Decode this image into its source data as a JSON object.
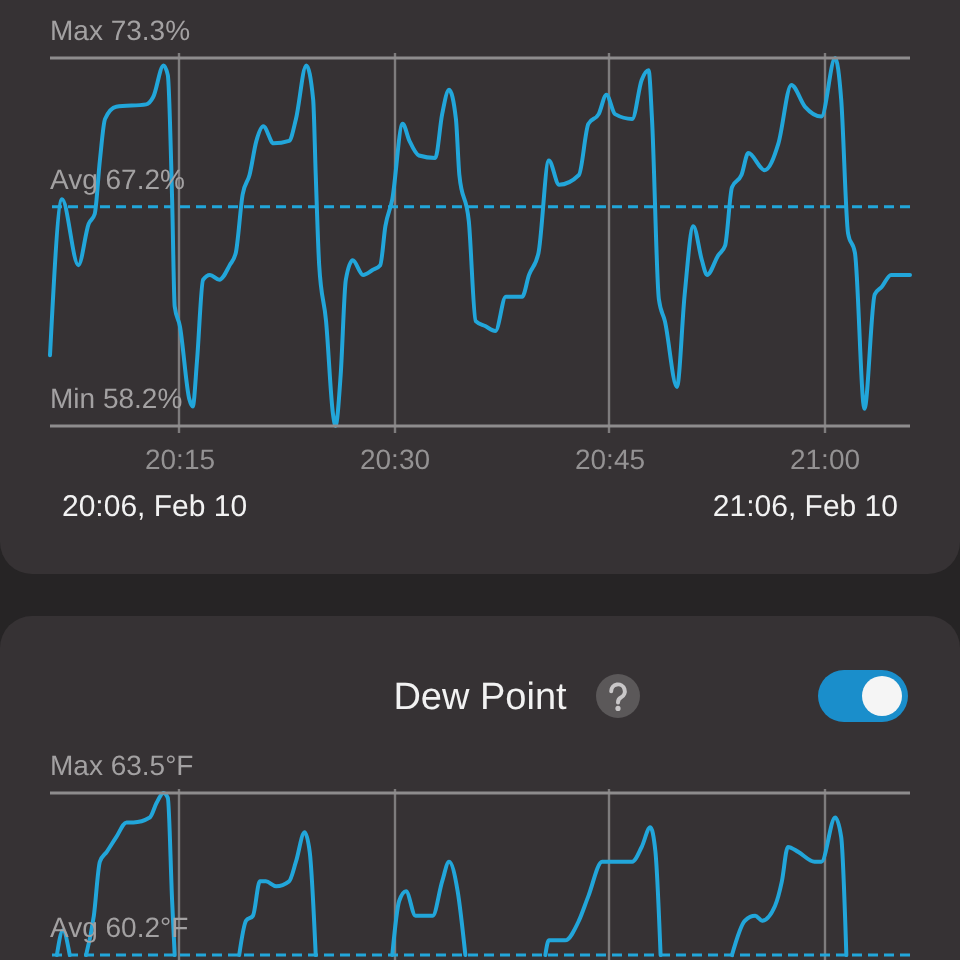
{
  "chart_data": [
    {
      "type": "line",
      "x": [
        20.1,
        20.114,
        20.133,
        20.145,
        20.152,
        20.158,
        20.164,
        20.177,
        20.212,
        20.22,
        20.232,
        20.237,
        20.242,
        20.245,
        20.251,
        20.262,
        20.266,
        20.271,
        20.278,
        20.286,
        20.297,
        20.309,
        20.316,
        20.324,
        20.332,
        20.34,
        20.348,
        20.36,
        20.378,
        20.386,
        20.398,
        20.406,
        20.409,
        20.413,
        20.421,
        20.429,
        20.432,
        20.438,
        20.444,
        20.452,
        20.464,
        20.475,
        20.484,
        20.49,
        20.498,
        20.51,
        20.518,
        20.529,
        20.548,
        20.556,
        20.564,
        20.572,
        20.576,
        20.587,
        20.595,
        20.606,
        20.618,
        20.63,
        20.649,
        20.657,
        20.668,
        20.68,
        20.692,
        20.715,
        20.726,
        20.738,
        20.747,
        20.757,
        20.777,
        20.788,
        20.796,
        20.8,
        20.808,
        20.815,
        20.829,
        20.838,
        20.848,
        20.858,
        20.864,
        20.877,
        20.885,
        20.893,
        20.904,
        20.912,
        20.931,
        20.947,
        20.962,
        20.978,
        20.997,
        21.013,
        21.02,
        21.028,
        21.036,
        21.047,
        21.059,
        21.067,
        21.078,
        21.1
      ],
      "series": [
        {
          "color": "#22a6da",
          "values": [
            61.1,
            67.5,
            64.8,
            66.5,
            66.9,
            69.1,
            70.8,
            71.3,
            71.4,
            71.7,
            73.0,
            72.6,
            67.5,
            63.1,
            62.3,
            59.3,
            59.0,
            60.9,
            64.2,
            64.4,
            64.2,
            64.8,
            65.3,
            67.7,
            68.5,
            69.9,
            70.5,
            69.8,
            69.9,
            70.8,
            73.0,
            71.6,
            68.5,
            64.8,
            62.5,
            58.7,
            58.2,
            60.3,
            64.2,
            65.0,
            64.4,
            64.6,
            64.8,
            66.4,
            67.5,
            70.6,
            69.9,
            69.3,
            69.2,
            71.0,
            72.0,
            70.8,
            68.5,
            66.6,
            62.5,
            62.3,
            62.1,
            63.5,
            63.5,
            64.4,
            65.3,
            69.1,
            68.1,
            68.5,
            70.6,
            71.0,
            71.8,
            71.0,
            70.8,
            72.4,
            72.8,
            70.8,
            63.4,
            62.5,
            59.8,
            63.6,
            66.4,
            65.0,
            64.4,
            65.2,
            65.6,
            68.0,
            68.5,
            69.4,
            68.7,
            69.8,
            72.2,
            71.3,
            70.9,
            73.3,
            71.6,
            66.1,
            65.3,
            58.9,
            63.6,
            63.9,
            64.4,
            64.4
          ]
        }
      ],
      "xlim": [
        20.1,
        21.1
      ],
      "xticks": [
        {
          "value": 20.25,
          "label": "20:15"
        },
        {
          "value": 20.5,
          "label": "20:30"
        },
        {
          "value": 20.75,
          "label": "20:45"
        },
        {
          "value": 21,
          "label": "21:00"
        }
      ],
      "ylim": [
        57.95,
        73.55
      ],
      "tick_labels": "x",
      "grid": "x",
      "ref_lines": [
        {
          "axis": "y",
          "value": 73.3,
          "label": "Max 73.3%",
          "color": "#8e8c8d",
          "line_style": "solid"
        },
        {
          "axis": "y",
          "value": 67.2,
          "label": "Avg 67.2%",
          "color": "#22a6da",
          "line_style": "dashed"
        },
        {
          "axis": "y",
          "value": 58.2,
          "label": "Min 58.2%",
          "color": "#8e8c8d",
          "line_style": "solid"
        }
      ],
      "annotations": [
        "20:06, Feb 10",
        "21:06, Feb 10"
      ]
    },
    {
      "type": "line",
      "title": "Dew Point",
      "x": [
        20.108,
        20.115,
        20.123,
        20.132,
        20.142,
        20.151,
        20.158,
        20.166,
        20.177,
        20.189,
        20.197,
        20.216,
        20.224,
        20.232,
        20.237,
        20.242,
        20.245,
        20.28,
        20.32,
        20.328,
        20.336,
        20.344,
        20.351,
        20.363,
        20.378,
        20.386,
        20.396,
        20.402,
        20.409,
        20.45,
        20.498,
        20.506,
        20.514,
        20.525,
        20.545,
        20.556,
        20.564,
        20.574,
        20.583,
        20.63,
        20.676,
        20.68,
        20.699,
        20.715,
        20.726,
        20.742,
        20.777,
        20.788,
        20.798,
        20.804,
        20.81,
        20.85,
        20.893,
        20.908,
        20.92,
        20.928,
        20.943,
        20.951,
        20.958,
        20.97,
        20.989,
        20.997,
        21.013,
        21.02,
        21.026
      ],
      "series": [
        {
          "color": "#22a6da",
          "values": [
            60.2,
            60.7,
            60.2,
            null,
            60.2,
            61.0,
            62.1,
            62.3,
            62.6,
            62.9,
            62.9,
            63.0,
            63.3,
            63.5,
            63.4,
            61.3,
            60.2,
            null,
            60.2,
            60.9,
            61.0,
            61.7,
            61.7,
            61.6,
            61.7,
            62.1,
            62.7,
            62.3,
            60.2,
            null,
            60.2,
            61.3,
            61.5,
            61.0,
            61.0,
            61.7,
            62.1,
            61.5,
            60.2,
            null,
            60.2,
            60.5,
            60.5,
            60.9,
            61.4,
            62.1,
            62.1,
            62.4,
            62.8,
            62.3,
            60.2,
            null,
            60.2,
            60.9,
            61.0,
            60.9,
            61.2,
            61.7,
            62.4,
            62.3,
            62.1,
            62.1,
            63.0,
            62.6,
            60.2
          ]
        }
      ],
      "xlim": [
        20.1,
        21.1
      ],
      "xticks": [
        {
          "value": 20.25,
          "label": null
        },
        {
          "value": 20.5,
          "label": null
        },
        {
          "value": 20.75,
          "label": null
        },
        {
          "value": 21,
          "label": null
        }
      ],
      "ylim": [
        60.1,
        63.6
      ],
      "tick_labels": false,
      "grid": "x",
      "ref_lines": [
        {
          "axis": "y",
          "value": 63.5,
          "label": "Max 63.5°F",
          "color": "#8e8c8d",
          "line_style": "solid"
        },
        {
          "axis": "y",
          "value": 60.2,
          "label": "Avg 60.2°F",
          "color": "#22a6da",
          "line_style": "dashed"
        }
      ]
    }
  ]
}
